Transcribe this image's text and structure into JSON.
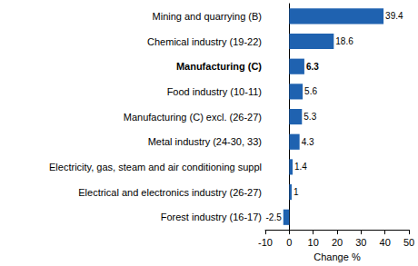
{
  "chart_data": {
    "type": "bar",
    "orientation": "horizontal",
    "categories": [
      "Mining and quarrying (B)",
      "Chemical industry (19-22)",
      "Manufacturing (C)",
      "Food industry (10-11)",
      "Manufacturing (C) excl. (26-27)",
      "Metal industry (24-30, 33)",
      "Electricity, gas, steam and air conditioning suppl",
      "Electrical and electronics industry (26-27)",
      "Forest industry (16-17)"
    ],
    "values": [
      39.4,
      18.6,
      6.3,
      5.6,
      5.3,
      4.3,
      1.4,
      1,
      -2.5
    ],
    "color": "#1f62b0",
    "xlabel": "Change %",
    "xlim": [
      -10,
      50
    ],
    "xticks": [
      -10,
      0,
      10,
      20,
      30,
      40,
      50
    ],
    "data_labels": true,
    "grid": false
  }
}
